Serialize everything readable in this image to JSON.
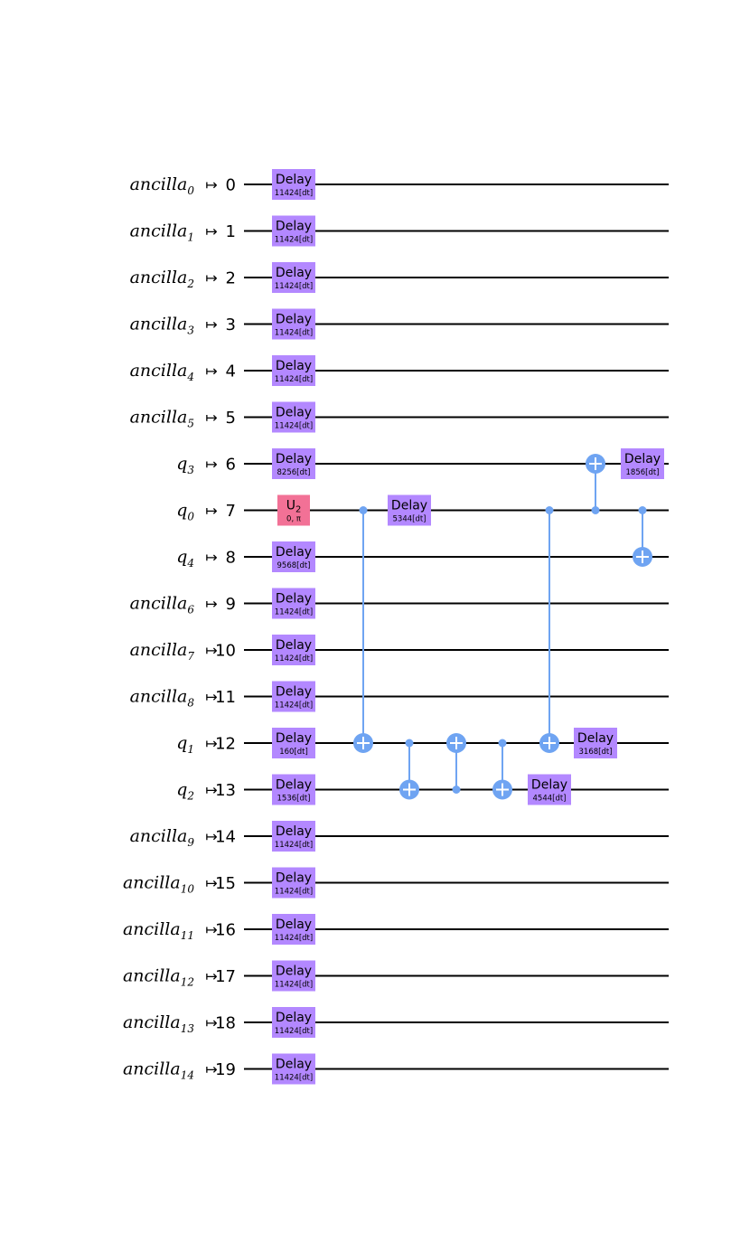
{
  "diagram": {
    "type": "quantum-circuit",
    "arrow_symbol": "↦",
    "colors": {
      "delay": "#b388ff",
      "u2": "#f27196",
      "cnot": "#6fa4f2",
      "wire": "#000000"
    },
    "qubits": [
      {
        "base": "ancilla",
        "sub": "0",
        "index": "0"
      },
      {
        "base": "ancilla",
        "sub": "1",
        "index": "1"
      },
      {
        "base": "ancilla",
        "sub": "2",
        "index": "2"
      },
      {
        "base": "ancilla",
        "sub": "3",
        "index": "3"
      },
      {
        "base": "ancilla",
        "sub": "4",
        "index": "4"
      },
      {
        "base": "ancilla",
        "sub": "5",
        "index": "5"
      },
      {
        "base": "q",
        "sub": "3",
        "index": "6"
      },
      {
        "base": "q",
        "sub": "0",
        "index": "7"
      },
      {
        "base": "q",
        "sub": "4",
        "index": "8"
      },
      {
        "base": "ancilla",
        "sub": "6",
        "index": "9"
      },
      {
        "base": "ancilla",
        "sub": "7",
        "index": "10"
      },
      {
        "base": "ancilla",
        "sub": "8",
        "index": "11"
      },
      {
        "base": "q",
        "sub": "1",
        "index": "12"
      },
      {
        "base": "q",
        "sub": "2",
        "index": "13"
      },
      {
        "base": "ancilla",
        "sub": "9",
        "index": "14"
      },
      {
        "base": "ancilla",
        "sub": "10",
        "index": "15"
      },
      {
        "base": "ancilla",
        "sub": "11",
        "index": "16"
      },
      {
        "base": "ancilla",
        "sub": "12",
        "index": "17"
      },
      {
        "base": "ancilla",
        "sub": "13",
        "index": "18"
      },
      {
        "base": "ancilla",
        "sub": "14",
        "index": "19"
      }
    ],
    "gates": [
      {
        "kind": "delay",
        "wire": 0,
        "col": 0,
        "label": "Delay",
        "param": "11424[dt]"
      },
      {
        "kind": "delay",
        "wire": 1,
        "col": 0,
        "label": "Delay",
        "param": "11424[dt]"
      },
      {
        "kind": "delay",
        "wire": 2,
        "col": 0,
        "label": "Delay",
        "param": "11424[dt]"
      },
      {
        "kind": "delay",
        "wire": 3,
        "col": 0,
        "label": "Delay",
        "param": "11424[dt]"
      },
      {
        "kind": "delay",
        "wire": 4,
        "col": 0,
        "label": "Delay",
        "param": "11424[dt]"
      },
      {
        "kind": "delay",
        "wire": 5,
        "col": 0,
        "label": "Delay",
        "param": "11424[dt]"
      },
      {
        "kind": "delay",
        "wire": 6,
        "col": 0,
        "label": "Delay",
        "param": "8256[dt]"
      },
      {
        "kind": "u2",
        "wire": 7,
        "col": 0,
        "label": "U",
        "label_sub": "2",
        "param": "0, π"
      },
      {
        "kind": "delay",
        "wire": 8,
        "col": 0,
        "label": "Delay",
        "param": "9568[dt]"
      },
      {
        "kind": "delay",
        "wire": 9,
        "col": 0,
        "label": "Delay",
        "param": "11424[dt]"
      },
      {
        "kind": "delay",
        "wire": 10,
        "col": 0,
        "label": "Delay",
        "param": "11424[dt]"
      },
      {
        "kind": "delay",
        "wire": 11,
        "col": 0,
        "label": "Delay",
        "param": "11424[dt]"
      },
      {
        "kind": "delay",
        "wire": 12,
        "col": 0,
        "label": "Delay",
        "param": "160[dt]"
      },
      {
        "kind": "delay",
        "wire": 13,
        "col": 0,
        "label": "Delay",
        "param": "1536[dt]"
      },
      {
        "kind": "delay",
        "wire": 14,
        "col": 0,
        "label": "Delay",
        "param": "11424[dt]"
      },
      {
        "kind": "delay",
        "wire": 15,
        "col": 0,
        "label": "Delay",
        "param": "11424[dt]"
      },
      {
        "kind": "delay",
        "wire": 16,
        "col": 0,
        "label": "Delay",
        "param": "11424[dt]"
      },
      {
        "kind": "delay",
        "wire": 17,
        "col": 0,
        "label": "Delay",
        "param": "11424[dt]"
      },
      {
        "kind": "delay",
        "wire": 18,
        "col": 0,
        "label": "Delay",
        "param": "11424[dt]"
      },
      {
        "kind": "delay",
        "wire": 19,
        "col": 0,
        "label": "Delay",
        "param": "11424[dt]"
      },
      {
        "kind": "cx",
        "control": 7,
        "target": 12,
        "col": 1
      },
      {
        "kind": "delay",
        "wire": 7,
        "col": 2,
        "label": "Delay",
        "param": "5344[dt]"
      },
      {
        "kind": "cx",
        "control": 12,
        "target": 13,
        "col": 2
      },
      {
        "kind": "cx",
        "control": 13,
        "target": 12,
        "col": 3
      },
      {
        "kind": "cx",
        "control": 12,
        "target": 13,
        "col": 4
      },
      {
        "kind": "cx",
        "control": 7,
        "target": 12,
        "col": 5
      },
      {
        "kind": "delay",
        "wire": 13,
        "col": 5,
        "label": "Delay",
        "param": "4544[dt]"
      },
      {
        "kind": "cx",
        "control": 7,
        "target": 6,
        "col": 6
      },
      {
        "kind": "delay",
        "wire": 12,
        "col": 6,
        "label": "Delay",
        "param": "3168[dt]"
      },
      {
        "kind": "delay",
        "wire": 6,
        "col": 7,
        "label": "Delay",
        "param": "1856[dt]"
      },
      {
        "kind": "cx",
        "control": 7,
        "target": 8,
        "col": 7
      }
    ]
  }
}
